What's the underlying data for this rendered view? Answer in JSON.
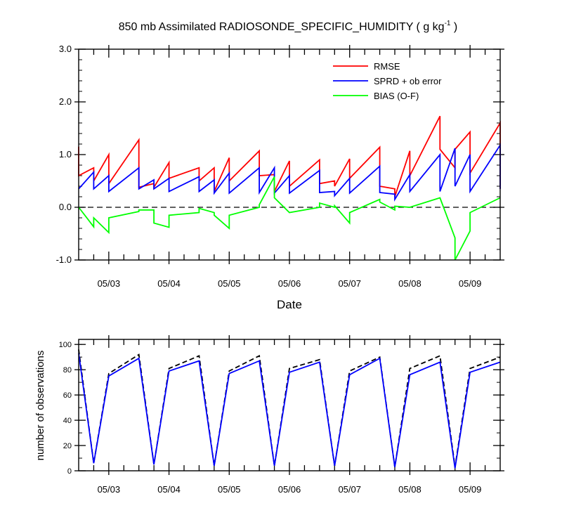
{
  "title": "850 mb Assimilated RADIOSONDE_SPECIFIC_HUMIDITY ( g kg",
  "title_superscript": "-1",
  "title_close": " )",
  "top_chart": {
    "type": "line",
    "xlabel": "Date",
    "ylabel": "",
    "xlim": [
      0,
      28
    ],
    "ylim": [
      -1.0,
      3.0
    ],
    "yticks": [
      {
        "v": -1.0,
        "label": "-1.0"
      },
      {
        "v": 0.0,
        "label": "0.0"
      },
      {
        "v": 1.0,
        "label": "1.0"
      },
      {
        "v": 2.0,
        "label": "2.0"
      },
      {
        "v": 3.0,
        "label": "3.0"
      }
    ],
    "xticks": [
      {
        "v": 2,
        "label": "05/03"
      },
      {
        "v": 6,
        "label": "05/04"
      },
      {
        "v": 10,
        "label": "05/05"
      },
      {
        "v": 14,
        "label": "05/06"
      },
      {
        "v": 18,
        "label": "05/07"
      },
      {
        "v": 22,
        "label": "05/08"
      },
      {
        "v": 26,
        "label": "05/09"
      }
    ],
    "legend_position": "top-right",
    "zero_line": "dashed",
    "series": [
      {
        "name": "RMSE",
        "color": "#ff0000",
        "points": [
          [
            0,
            1.15
          ],
          [
            0,
            0.6
          ],
          [
            1,
            0.75
          ],
          [
            1,
            0.5
          ],
          [
            2,
            1.0
          ],
          [
            2,
            0.45
          ],
          [
            4,
            1.28
          ],
          [
            4,
            0.38
          ],
          [
            5,
            0.45
          ],
          [
            5,
            0.38
          ],
          [
            6,
            0.85
          ],
          [
            6,
            0.55
          ],
          [
            8,
            0.75
          ],
          [
            8,
            0.5
          ],
          [
            9,
            0.75
          ],
          [
            9,
            0.3
          ],
          [
            10,
            0.94
          ],
          [
            10,
            0.5
          ],
          [
            12,
            1.07
          ],
          [
            12,
            0.6
          ],
          [
            13,
            0.62
          ],
          [
            13,
            0.3
          ],
          [
            14,
            0.88
          ],
          [
            14,
            0.4
          ],
          [
            16,
            0.9
          ],
          [
            16,
            0.45
          ],
          [
            17,
            0.5
          ],
          [
            17,
            0.4
          ],
          [
            18,
            0.92
          ],
          [
            18,
            0.55
          ],
          [
            20,
            1.14
          ],
          [
            20,
            0.4
          ],
          [
            21,
            0.35
          ],
          [
            21,
            0.2
          ],
          [
            22,
            1.07
          ],
          [
            22,
            0.6
          ],
          [
            24,
            1.73
          ],
          [
            24,
            1.1
          ],
          [
            25,
            0.75
          ],
          [
            25,
            1.1
          ],
          [
            26,
            1.43
          ],
          [
            26,
            0.65
          ],
          [
            28,
            1.6
          ],
          [
            28,
            0.35
          ]
        ]
      },
      {
        "name": "SPRD + ob error",
        "color": "#0000ff",
        "points": [
          [
            0,
            0.35
          ],
          [
            1,
            0.67
          ],
          [
            1,
            0.35
          ],
          [
            2,
            0.6
          ],
          [
            2,
            0.3
          ],
          [
            4,
            0.75
          ],
          [
            4,
            0.35
          ],
          [
            5,
            0.52
          ],
          [
            5,
            0.35
          ],
          [
            6,
            0.55
          ],
          [
            6,
            0.3
          ],
          [
            8,
            0.58
          ],
          [
            8,
            0.3
          ],
          [
            9,
            0.52
          ],
          [
            9,
            0.27
          ],
          [
            10,
            0.65
          ],
          [
            10,
            0.27
          ],
          [
            12,
            0.75
          ],
          [
            12,
            0.28
          ],
          [
            13,
            0.75
          ],
          [
            13,
            0.27
          ],
          [
            14,
            0.6
          ],
          [
            14,
            0.27
          ],
          [
            16,
            0.7
          ],
          [
            16,
            0.28
          ],
          [
            17,
            0.3
          ],
          [
            17,
            0.22
          ],
          [
            18,
            0.55
          ],
          [
            18,
            0.27
          ],
          [
            20,
            0.78
          ],
          [
            20,
            0.28
          ],
          [
            21,
            0.25
          ],
          [
            21,
            0.15
          ],
          [
            22,
            0.62
          ],
          [
            22,
            0.3
          ],
          [
            24,
            1.0
          ],
          [
            24,
            0.3
          ],
          [
            25,
            1.12
          ],
          [
            25,
            0.4
          ],
          [
            26,
            1.0
          ],
          [
            26,
            0.3
          ],
          [
            28,
            1.18
          ],
          [
            28,
            0.35
          ]
        ]
      },
      {
        "name": "BIAS (O-F)",
        "color": "#00ff00",
        "points": [
          [
            0,
            0.0
          ],
          [
            1,
            -0.37
          ],
          [
            1,
            -0.2
          ],
          [
            2,
            -0.48
          ],
          [
            2,
            -0.2
          ],
          [
            4,
            -0.08
          ],
          [
            4,
            -0.05
          ],
          [
            5,
            -0.05
          ],
          [
            5,
            -0.3
          ],
          [
            6,
            -0.38
          ],
          [
            6,
            -0.15
          ],
          [
            8,
            -0.1
          ],
          [
            8,
            -0.02
          ],
          [
            9,
            -0.1
          ],
          [
            9,
            -0.15
          ],
          [
            10,
            -0.4
          ],
          [
            10,
            -0.15
          ],
          [
            12,
            0.0
          ],
          [
            12,
            0.05
          ],
          [
            13,
            0.58
          ],
          [
            13,
            0.18
          ],
          [
            14,
            -0.1
          ],
          [
            16,
            0.0
          ],
          [
            16,
            0.08
          ],
          [
            17,
            0.0
          ],
          [
            17,
            0.03
          ],
          [
            18,
            -0.3
          ],
          [
            18,
            -0.1
          ],
          [
            20,
            0.15
          ],
          [
            20,
            0.1
          ],
          [
            21,
            -0.05
          ],
          [
            21,
            0.02
          ],
          [
            22,
            0.0
          ],
          [
            24,
            0.18
          ],
          [
            25,
            -0.58
          ],
          [
            25,
            -1.0
          ],
          [
            26,
            -0.45
          ],
          [
            26,
            -0.1
          ],
          [
            28,
            0.18
          ]
        ]
      }
    ]
  },
  "bottom_chart": {
    "type": "line",
    "ylabel": "number of observations",
    "xlim": [
      0,
      28
    ],
    "ylim": [
      0,
      104
    ],
    "yticks": [
      {
        "v": 0,
        "label": "0"
      },
      {
        "v": 20,
        "label": "20"
      },
      {
        "v": 40,
        "label": "40"
      },
      {
        "v": 60,
        "label": "60"
      },
      {
        "v": 80,
        "label": "80"
      },
      {
        "v": 100,
        "label": "100"
      }
    ],
    "xticks": [
      {
        "v": 2,
        "label": "05/03"
      },
      {
        "v": 6,
        "label": "05/04"
      },
      {
        "v": 10,
        "label": "05/05"
      },
      {
        "v": 14,
        "label": "05/06"
      },
      {
        "v": 18,
        "label": "05/07"
      },
      {
        "v": 22,
        "label": "05/08"
      },
      {
        "v": 26,
        "label": "05/09"
      }
    ],
    "series": [
      {
        "name": "",
        "color": "#000000",
        "dashed": true,
        "points": [
          [
            0,
            96
          ],
          [
            1,
            6
          ],
          [
            2,
            77
          ],
          [
            4,
            92
          ],
          [
            5,
            5
          ],
          [
            6,
            81
          ],
          [
            8,
            91
          ],
          [
            9,
            4
          ],
          [
            10,
            79
          ],
          [
            12,
            91
          ],
          [
            13,
            4
          ],
          [
            14,
            81
          ],
          [
            16,
            88
          ],
          [
            17,
            4
          ],
          [
            18,
            79
          ],
          [
            20,
            90
          ],
          [
            21,
            3
          ],
          [
            22,
            81
          ],
          [
            24,
            91
          ],
          [
            25,
            3
          ],
          [
            26,
            81
          ],
          [
            28,
            90
          ]
        ]
      },
      {
        "name": "",
        "color": "#0000ff",
        "dashed": false,
        "points": [
          [
            0,
            93
          ],
          [
            1,
            6
          ],
          [
            2,
            75
          ],
          [
            4,
            89
          ],
          [
            5,
            5
          ],
          [
            6,
            79
          ],
          [
            8,
            87
          ],
          [
            9,
            4
          ],
          [
            10,
            77
          ],
          [
            12,
            87
          ],
          [
            13,
            4
          ],
          [
            14,
            78
          ],
          [
            16,
            86
          ],
          [
            17,
            4
          ],
          [
            18,
            76
          ],
          [
            20,
            89
          ],
          [
            21,
            3
          ],
          [
            22,
            76
          ],
          [
            24,
            86
          ],
          [
            25,
            2
          ],
          [
            26,
            78
          ],
          [
            28,
            86
          ]
        ]
      }
    ]
  }
}
